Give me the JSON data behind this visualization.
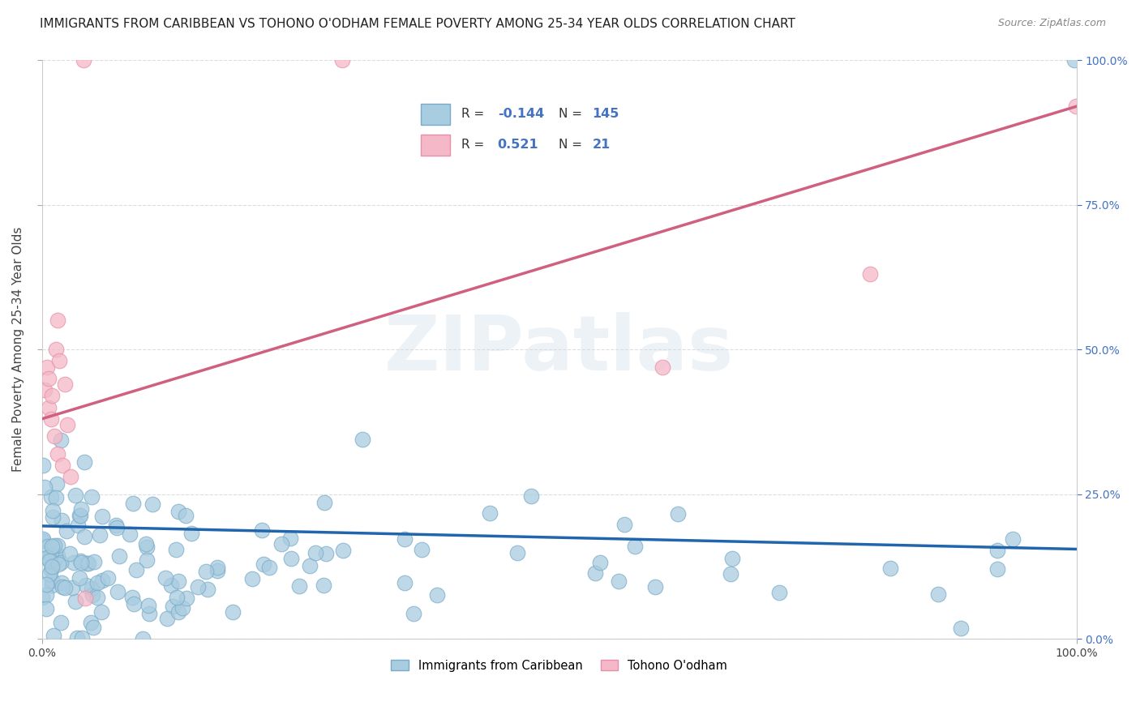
{
  "title": "IMMIGRANTS FROM CARIBBEAN VS TOHONO O'ODHAM FEMALE POVERTY AMONG 25-34 YEAR OLDS CORRELATION CHART",
  "source": "Source: ZipAtlas.com",
  "ylabel": "Female Poverty Among 25-34 Year Olds",
  "watermark": "ZIPatlas",
  "blue_R": -0.144,
  "blue_N": 145,
  "pink_R": 0.521,
  "pink_N": 21,
  "blue_color": "#a8cce0",
  "pink_color": "#f4b8c8",
  "blue_edge_color": "#7aacc8",
  "pink_edge_color": "#e890a8",
  "blue_line_color": "#2166ac",
  "pink_line_color": "#d06080",
  "legend_label_blue": "Immigrants from Caribbean",
  "legend_label_pink": "Tohono O'odham",
  "xlim": [
    0,
    1
  ],
  "ylim": [
    0,
    1
  ],
  "ytick_labels_right": [
    "0.0%",
    "25.0%",
    "50.0%",
    "75.0%",
    "100.0%"
  ],
  "ytick_positions_right": [
    0.0,
    0.25,
    0.5,
    0.75,
    1.0
  ],
  "grid_color": "#dddddd",
  "background_color": "#ffffff",
  "title_fontsize": 11,
  "axis_label_fontsize": 11,
  "tick_fontsize": 10,
  "blue_line_y0": 0.195,
  "blue_line_y1": 0.155,
  "pink_line_y0": 0.38,
  "pink_line_y1": 0.92
}
